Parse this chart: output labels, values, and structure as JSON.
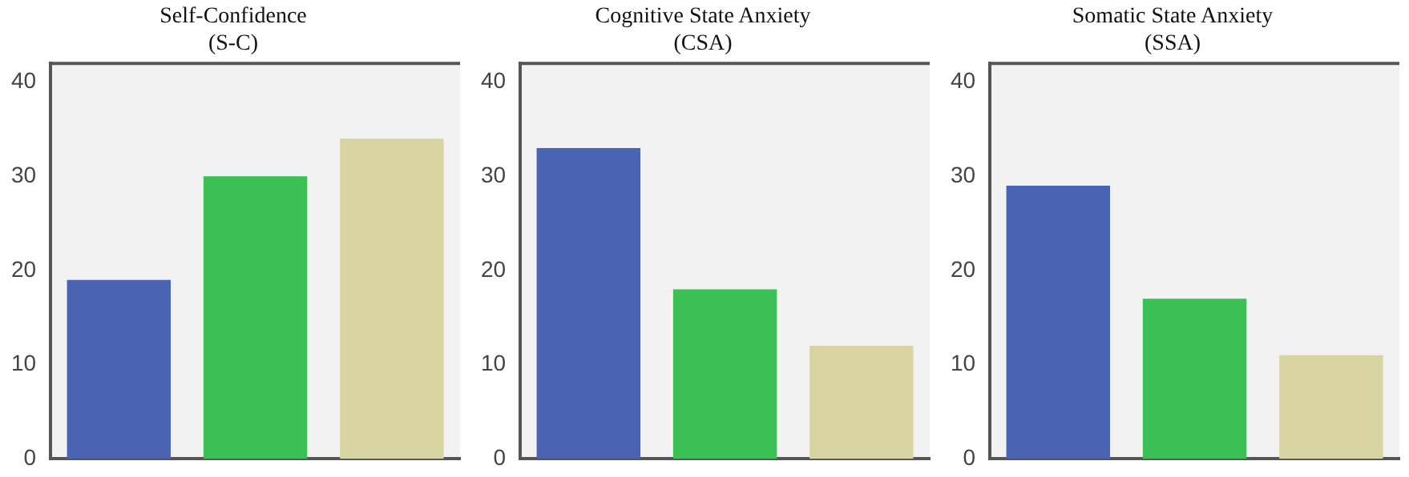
{
  "chart_data": [
    {
      "type": "bar",
      "title": "Self-Confidence\n(S-C)",
      "categories": [
        null,
        null,
        null
      ],
      "values": [
        19,
        30,
        34
      ],
      "colors": [
        "#4a63b3",
        "#3cbf55",
        "#d8d5a3"
      ],
      "ylim": [
        0,
        42
      ],
      "yticks": [
        0,
        10,
        20,
        30,
        40
      ],
      "grid": false
    },
    {
      "type": "bar",
      "title": "Cognitive State Anxiety\n(CSA)",
      "categories": [
        null,
        null,
        null
      ],
      "values": [
        33,
        18,
        12
      ],
      "colors": [
        "#4a63b3",
        "#3cbf55",
        "#d8d5a3"
      ],
      "ylim": [
        0,
        42
      ],
      "yticks": [
        0,
        10,
        20,
        30,
        40
      ],
      "grid": false
    },
    {
      "type": "bar",
      "title": "Somatic State Anxiety\n(SSA)",
      "categories": [
        null,
        null,
        null
      ],
      "values": [
        29,
        17,
        11
      ],
      "colors": [
        "#4a63b3",
        "#3cbf55",
        "#d8d5a3"
      ],
      "ylim": [
        0,
        42
      ],
      "yticks": [
        0,
        10,
        20,
        30,
        40
      ],
      "grid": false
    }
  ]
}
